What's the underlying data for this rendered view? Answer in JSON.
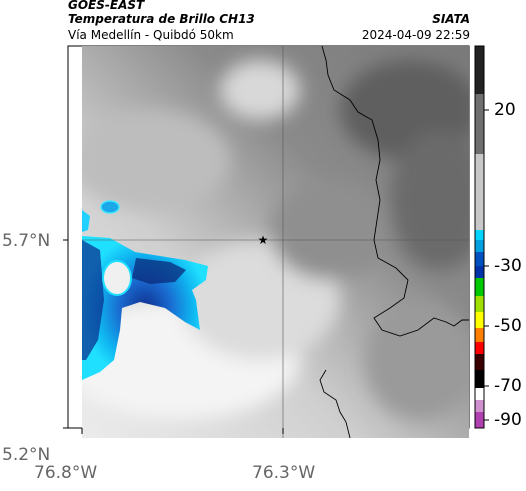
{
  "header": {
    "satellite": "GOES-EAST",
    "product": "Temperatura de Brillo CH13",
    "region": "Vía Medellín - Quibdó 50km",
    "organization": "SIATA",
    "datetime": "2024-04-09 22:59"
  },
  "map": {
    "lat_ticks": [
      "5.7°N",
      "5.2°N"
    ],
    "lon_ticks": [
      "76.8°W",
      "76.3°W"
    ],
    "marker_icon": "star-icon"
  },
  "colorbar": {
    "labels": [
      "20",
      "-30",
      "-50",
      "-70",
      "-90"
    ],
    "colors": [
      "#1a1a1a",
      "#808080",
      "#f2f2f2",
      "#00d4ff",
      "#0033aa",
      "#00c800",
      "#ffff00",
      "#ff8000",
      "#ff0000",
      "#3a0000",
      "#000000",
      "#ffffff",
      "#b040b0"
    ]
  }
}
